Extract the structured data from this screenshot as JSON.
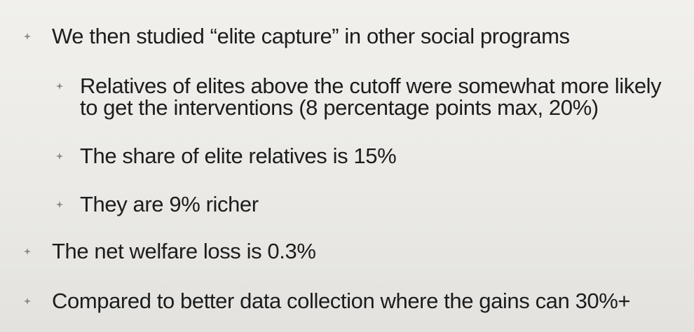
{
  "slide": {
    "bullets": [
      {
        "level": 1,
        "text": "We then studied “elite capture” in other social programs",
        "icon": "diamond-bullet-icon"
      },
      {
        "level": 2,
        "text": "Relatives of elites above the cutoff were somewhat more likely to get the interventions (8 percentage points max, 20%)",
        "icon": "diamond-bullet-icon"
      },
      {
        "level": 2,
        "text": "The share of elite relatives is 15%",
        "icon": "diamond-bullet-icon"
      },
      {
        "level": 2,
        "text": "They are 9% richer",
        "icon": "diamond-bullet-icon"
      },
      {
        "level": 1,
        "text": "The net welfare loss is 0.3%",
        "icon": "diamond-bullet-icon"
      },
      {
        "level": 1,
        "text": "Compared to better data collection where the gains can 30%+",
        "icon": "diamond-bullet-icon"
      }
    ],
    "colors": {
      "text": "#1d1d1d",
      "bullet": "#8a8a86",
      "background": "#ebeae6"
    }
  }
}
